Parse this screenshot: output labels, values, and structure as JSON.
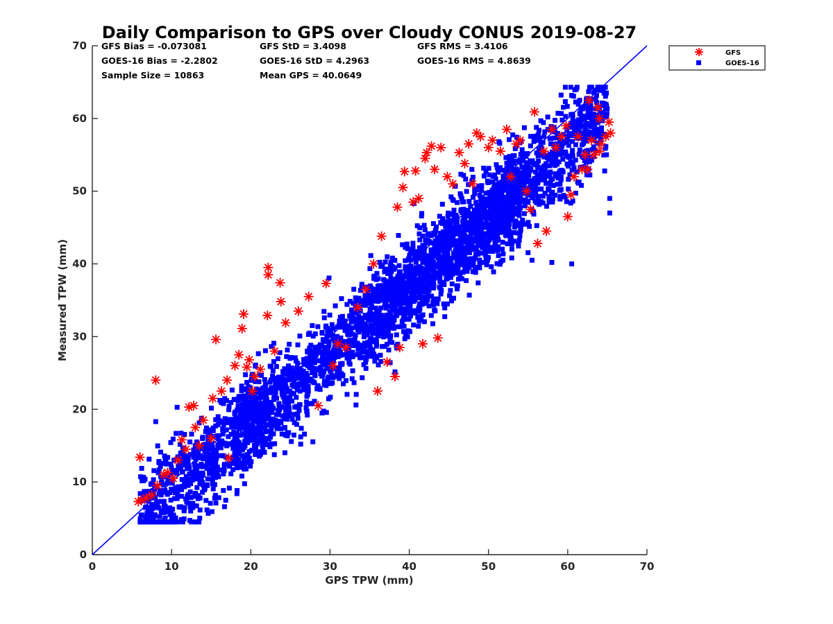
{
  "colors": {
    "gfs": "#ff0000",
    "goes": "#0000ff",
    "axis": "#262626"
  },
  "chart_data": {
    "type": "scatter",
    "title": "Daily Comparison to GPS over Cloudy CONUS 2019-08-27",
    "xlabel": "GPS TPW (mm)",
    "ylabel": "Measured TPW (mm)",
    "xlim": [
      0,
      70
    ],
    "ylim": [
      0,
      70
    ],
    "xticks": [
      "0",
      "10",
      "20",
      "30",
      "40",
      "50",
      "60",
      "70"
    ],
    "yticks": [
      "0",
      "10",
      "20",
      "30",
      "40",
      "50",
      "60",
      "70"
    ],
    "grid": false,
    "legend_position": "outside top-right",
    "reference_line": {
      "x": [
        0,
        70
      ],
      "y": [
        0,
        70
      ],
      "color": "#0000ff"
    },
    "stats": [
      [
        "GFS Bias = -0.073081",
        "GFS StD = 3.4098",
        "GFS RMS = 3.4106"
      ],
      [
        "GOES-16 Bias = -2.2802",
        "GOES-16 StD = 4.2963",
        "GOES-16 RMS = 4.8639"
      ],
      [
        "Sample Size = 10863",
        "Mean GPS = 40.0649"
      ]
    ],
    "series": [
      {
        "name": "GFS",
        "marker": "asterisk",
        "color": "#ff0000",
        "points": [
          [
            5.8,
            7.3
          ],
          [
            6.2,
            7.5
          ],
          [
            6.8,
            7.8
          ],
          [
            7.5,
            8.2
          ],
          [
            8.2,
            9.5
          ],
          [
            9,
            11
          ],
          [
            9.5,
            11.3
          ],
          [
            10.2,
            10.5
          ],
          [
            6,
            13.4
          ],
          [
            8,
            24
          ],
          [
            10.8,
            13
          ],
          [
            11.3,
            15.8
          ],
          [
            11.8,
            14.5
          ],
          [
            12.2,
            20.3
          ],
          [
            12.8,
            20.5
          ],
          [
            13,
            17.5
          ],
          [
            13.5,
            15
          ],
          [
            14,
            18.5
          ],
          [
            15,
            16
          ],
          [
            15.2,
            21.5
          ],
          [
            15.6,
            29.6
          ],
          [
            16.3,
            22.5
          ],
          [
            17,
            24
          ],
          [
            17.2,
            13.3
          ],
          [
            18,
            26
          ],
          [
            18.5,
            27.5
          ],
          [
            18.9,
            31.1
          ],
          [
            19.1,
            33.1
          ],
          [
            19.5,
            25.8
          ],
          [
            19.8,
            26.8
          ],
          [
            20.2,
            22.5
          ],
          [
            20.5,
            24.5
          ],
          [
            21.2,
            25.5
          ],
          [
            22.2,
            39.5
          ],
          [
            22.2,
            38.5
          ],
          [
            23,
            28
          ],
          [
            23.7,
            37.4
          ],
          [
            23.8,
            34.8
          ],
          [
            22.1,
            32.9
          ],
          [
            24.4,
            31.9
          ],
          [
            26,
            33.5
          ],
          [
            27.3,
            35.5
          ],
          [
            28.5,
            20.5
          ],
          [
            29.5,
            37.3
          ],
          [
            30.4,
            26
          ],
          [
            31,
            29
          ],
          [
            32,
            28.5
          ],
          [
            33.5,
            34
          ],
          [
            34.5,
            36.5
          ],
          [
            35.5,
            40
          ],
          [
            36,
            22.5
          ],
          [
            36.5,
            43.8
          ],
          [
            37.2,
            26.5
          ],
          [
            38.2,
            24.5
          ],
          [
            38.5,
            47.8
          ],
          [
            38.8,
            28.5
          ],
          [
            39.2,
            50.5
          ],
          [
            39.4,
            52.7
          ],
          [
            40.5,
            48.5
          ],
          [
            40.8,
            52.8
          ],
          [
            41.2,
            49
          ],
          [
            41.7,
            29
          ],
          [
            42,
            54.5
          ],
          [
            42.2,
            55.3
          ],
          [
            42.8,
            56.2
          ],
          [
            43.2,
            53
          ],
          [
            43.6,
            29.8
          ],
          [
            44,
            56
          ],
          [
            44.8,
            52
          ],
          [
            45.5,
            51
          ],
          [
            46.3,
            55.3
          ],
          [
            47,
            53.8
          ],
          [
            47.5,
            56.5
          ],
          [
            48,
            51
          ],
          [
            48.5,
            58
          ],
          [
            49,
            57.5
          ],
          [
            50,
            56
          ],
          [
            50.5,
            57
          ],
          [
            51.5,
            55.5
          ],
          [
            52.3,
            58.5
          ],
          [
            52.8,
            52
          ],
          [
            53.5,
            56.5
          ],
          [
            54,
            57
          ],
          [
            54.8,
            50
          ],
          [
            55.3,
            47.5
          ],
          [
            55.8,
            60.9
          ],
          [
            56.2,
            42.8
          ],
          [
            57,
            55.5
          ],
          [
            57.3,
            44.5
          ],
          [
            58,
            58.5
          ],
          [
            58.5,
            56
          ],
          [
            59.2,
            57.5
          ],
          [
            59.8,
            59
          ],
          [
            60,
            46.5
          ],
          [
            60.4,
            49.5
          ],
          [
            60.8,
            52
          ],
          [
            61.3,
            57.5
          ],
          [
            61.8,
            53
          ],
          [
            62.2,
            55
          ],
          [
            62.7,
            62.5
          ],
          [
            63,
            57
          ],
          [
            63.3,
            55
          ],
          [
            63.8,
            61.5
          ],
          [
            64,
            60
          ],
          [
            64.2,
            56.5
          ],
          [
            64.8,
            57.5
          ],
          [
            65.2,
            59.5
          ],
          [
            65.4,
            58
          ],
          [
            64,
            55.5
          ],
          [
            62.5,
            53
          ]
        ]
      },
      {
        "name": "GOES-16",
        "marker": "square",
        "color": "#0000ff",
        "points": []
      }
    ]
  }
}
